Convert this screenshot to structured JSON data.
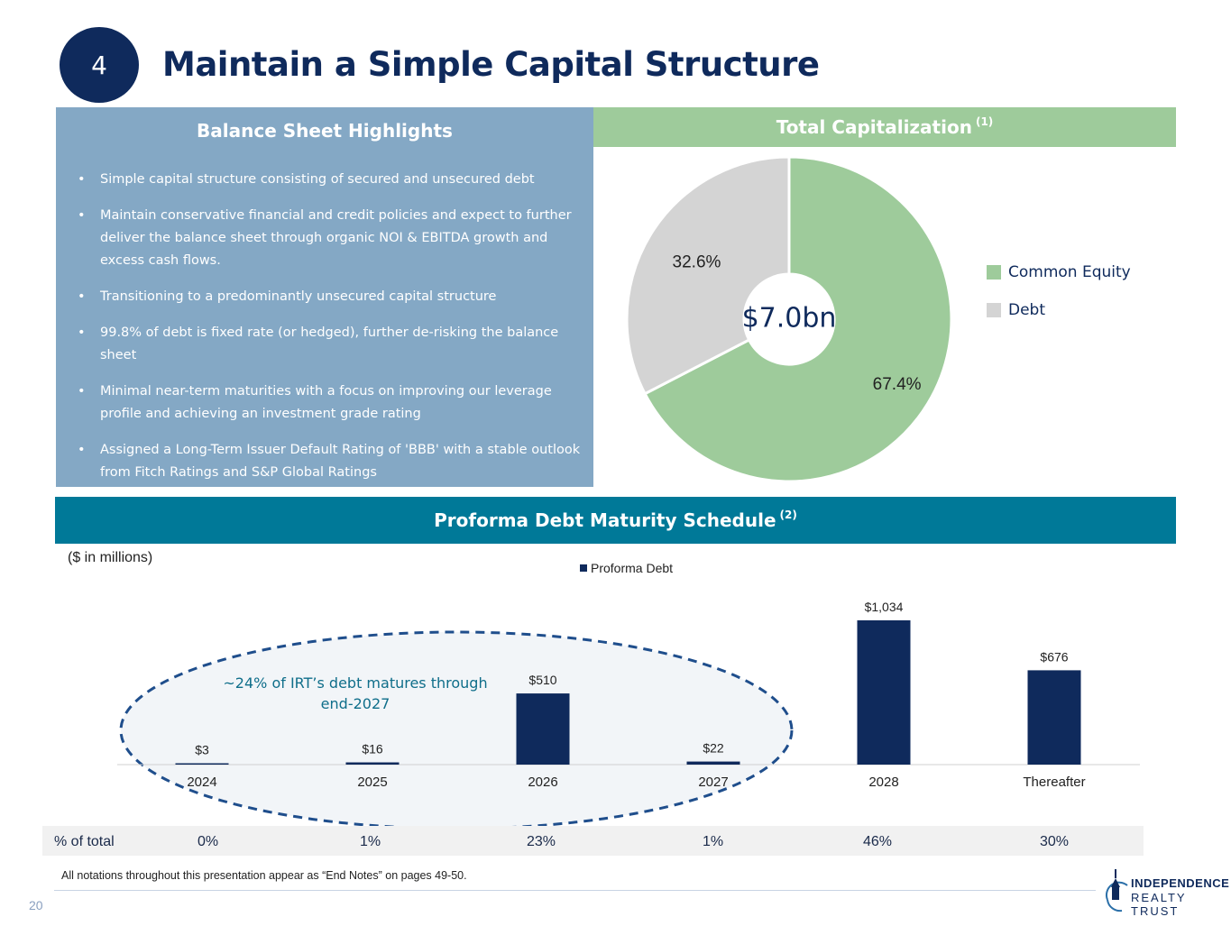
{
  "slide": {
    "number": "4",
    "title": "Maintain a Simple Capital Structure",
    "page_number": "20"
  },
  "balance_sheet": {
    "heading": "Balance Sheet Highlights",
    "bullets": [
      "Simple capital structure consisting of secured and unsecured debt",
      "Maintain conservative financial and credit policies and expect to further deliver the balance sheet through organic NOI & EBITDA growth and excess cash flows.",
      "Transitioning to a predominantly unsecured capital structure",
      "99.8% of debt is fixed rate (or hedged), further de-risking the balance sheet",
      "Minimal near-term maturities with a focus on improving our leverage profile and achieving an investment grade rating",
      "Assigned a Long-Term Issuer Default Rating of 'BBB' with a stable outlook from Fitch Ratings and S&P Global Ratings"
    ]
  },
  "capitalization": {
    "heading": "Total Capitalization",
    "heading_note": "(1)",
    "center_label": "$7.0bn",
    "colors": {
      "equity": "#9ecb9b",
      "debt": "#d4d4d4"
    }
  },
  "schedule": {
    "heading": "Proforma Debt Maturity Schedule",
    "heading_note": "(2)",
    "units": "($ in millions)",
    "annotation_line1": "~24% of IRT’s debt matures through",
    "annotation_line2": "end-2027",
    "pct_row_label": "% of total",
    "pct_values": [
      "0%",
      "1%",
      "23%",
      "1%",
      "46%",
      "30%"
    ]
  },
  "chart_data": [
    {
      "type": "pie",
      "title": "Total Capitalization (1)",
      "center_label": "$7.0bn",
      "categories": [
        "Common Equity",
        "Debt"
      ],
      "values": [
        67.4,
        32.6
      ],
      "value_labels": [
        "67.4%",
        "32.6%"
      ],
      "legend_position": "right"
    },
    {
      "type": "bar",
      "title": "Proforma Debt Maturity Schedule (2)",
      "categories": [
        "2024",
        "2025",
        "2026",
        "2027",
        "2028",
        "Thereafter"
      ],
      "series": [
        {
          "name": "Proforma Debt",
          "values": [
            3,
            16,
            510,
            22,
            1034,
            676
          ]
        }
      ],
      "value_labels": [
        "$3",
        "$16",
        "$510",
        "$22",
        "$1,034",
        "$676"
      ],
      "ylabel": "($ in millions)",
      "ylim": [
        0,
        1100
      ],
      "legend_position": "top-center",
      "bar_color": "#0f2a5c"
    }
  ],
  "footer": {
    "note": "All notations throughout this presentation appear as “End Notes” on pages 49-50.",
    "logo_line1": "INDEPENDENCE",
    "logo_line2": "REALTY TRUST"
  }
}
